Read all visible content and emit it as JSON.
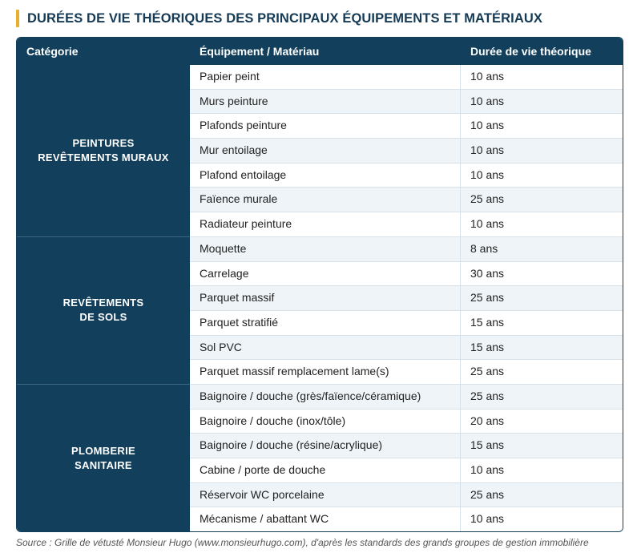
{
  "title": "DURÉES DE VIE THÉORIQUES DES PRINCIPAUX ÉQUIPEMENTS ET MATÉRIAUX",
  "accent_color": "#e8b02a",
  "header_color": "#12405c",
  "columns": {
    "category": "Catégorie",
    "equipment": "Équipement / Matériau",
    "duration": "Durée de vie théorique"
  },
  "categories": [
    {
      "line1": "PEINTURES",
      "line2": "REVÊTEMENTS MURAUX",
      "rows": 7
    },
    {
      "line1": "REVÊTEMENTS",
      "line2": "DE SOLS",
      "rows": 6
    },
    {
      "line1": "PLOMBERIE",
      "line2": "SANITAIRE",
      "rows": 6
    }
  ],
  "rows": [
    {
      "item": "Papier peint",
      "duration": "10 ans"
    },
    {
      "item": "Murs peinture",
      "duration": "10 ans"
    },
    {
      "item": "Plafonds peinture",
      "duration": "10 ans"
    },
    {
      "item": "Mur entoilage",
      "duration": "10 ans"
    },
    {
      "item": "Plafond entoilage",
      "duration": "10 ans"
    },
    {
      "item": "Faïence murale",
      "duration": "25 ans"
    },
    {
      "item": "Radiateur peinture",
      "duration": "10 ans"
    },
    {
      "item": "Moquette",
      "duration": "8 ans"
    },
    {
      "item": "Carrelage",
      "duration": "30 ans"
    },
    {
      "item": "Parquet massif",
      "duration": "25 ans"
    },
    {
      "item": "Parquet stratifié",
      "duration": "15 ans"
    },
    {
      "item": "Sol PVC",
      "duration": "15 ans"
    },
    {
      "item": "Parquet massif remplacement lame(s)",
      "duration": "25 ans"
    },
    {
      "item": "Baignoire / douche (grès/faïence/céramique)",
      "duration": "25 ans"
    },
    {
      "item": "Baignoire / douche (inox/tôle)",
      "duration": "20 ans"
    },
    {
      "item": "Baignoire / douche (résine/acrylique)",
      "duration": "15 ans"
    },
    {
      "item": "Cabine / porte de douche",
      "duration": "10 ans"
    },
    {
      "item": "Réservoir WC porcelaine",
      "duration": "25 ans"
    },
    {
      "item": "Mécanisme / abattant WC",
      "duration": "10 ans"
    }
  ],
  "source": "Source : Grille de vétusté Monsieur Hugo (www.monsieurhugo.com), d'après les standards des grands groupes de gestion immobilière"
}
